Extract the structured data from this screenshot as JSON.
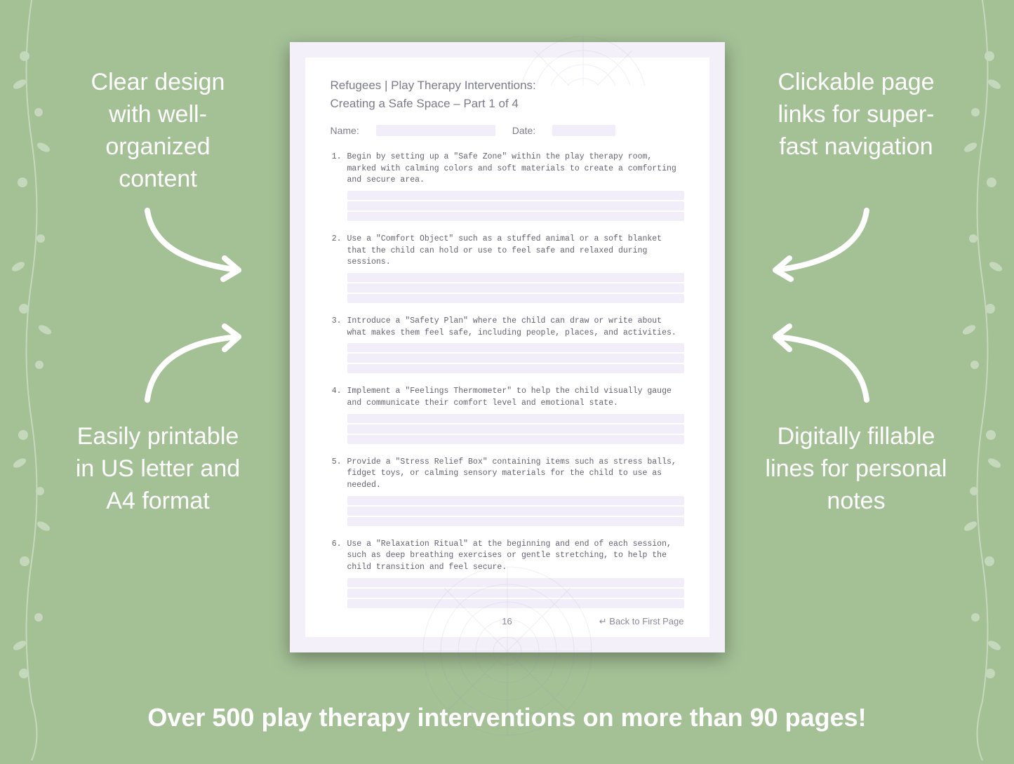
{
  "colors": {
    "background": "#a4c196",
    "page_outer": "#f4f0fa",
    "page_inner": "#ffffff",
    "fill_line": "#f2eef9",
    "callout_text": "#ffffff",
    "doc_text": "#7b7b8a",
    "item_text": "#636370",
    "footer_text": "#8a8a99"
  },
  "callouts": {
    "top_left": "Clear design with well-organized content",
    "top_right": "Clickable page links for super-fast navigation",
    "bottom_left": "Easily printable in US letter and A4 format",
    "bottom_right": "Digitally fillable lines for personal notes"
  },
  "footer_banner": "Over 500 play therapy interventions on more than 90 pages!",
  "document": {
    "title": "Refugees | Play Therapy Interventions:",
    "subtitle": "Creating a Safe Space – Part 1 of 4",
    "meta": {
      "name_label": "Name:",
      "date_label": "Date:"
    },
    "items": [
      {
        "num": "1.",
        "text": "Begin by setting up a \"Safe Zone\" within the play therapy room, marked with calming colors and soft materials to create a comforting and secure area."
      },
      {
        "num": "2.",
        "text": "Use a \"Comfort Object\" such as a stuffed animal or a soft blanket that the child can hold or use to feel safe and relaxed during sessions."
      },
      {
        "num": "3.",
        "text": "Introduce a \"Safety Plan\" where the child can draw or write about what makes them feel safe, including people, places, and activities."
      },
      {
        "num": "4.",
        "text": "Implement a \"Feelings Thermometer\" to help the child visually gauge and communicate their comfort level and emotional state."
      },
      {
        "num": "5.",
        "text": "Provide a \"Stress Relief Box\" containing items such as stress balls, fidget toys, or calming sensory materials for the child to use as needed."
      },
      {
        "num": "6.",
        "text": "Use a \"Relaxation Ritual\" at the beginning and end of each session, such as deep breathing exercises or gentle stretching, to help the child transition and feel secure."
      }
    ],
    "page_number": "16",
    "back_link": "↵ Back to First Page"
  }
}
